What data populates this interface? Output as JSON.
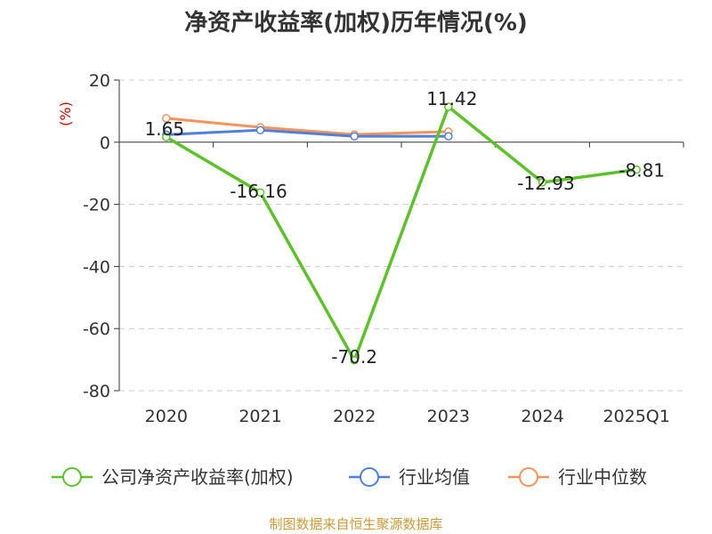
{
  "chart_data": {
    "type": "line",
    "title": "净资产收益率(加权)历年情况(%)",
    "ylabel": "(%)",
    "xlabel": "",
    "categories": [
      "2020",
      "2021",
      "2022",
      "2023",
      "2024",
      "2025Q1"
    ],
    "ylim": [
      -80,
      20
    ],
    "yticks": [
      20,
      0,
      -20,
      -40,
      -60,
      -80
    ],
    "grid": true,
    "legend_position": "bottom",
    "series": [
      {
        "name": "公司净资产收益率(加权)",
        "color": "#5cc22a",
        "values": [
          1.65,
          -16.16,
          -70.2,
          11.42,
          -12.93,
          -8.81
        ],
        "labels": [
          "1.65",
          "-16.16",
          "-70.2",
          "11.42",
          "-12.93",
          "-8.81"
        ]
      },
      {
        "name": "行业均值",
        "color": "#4f7fdc",
        "values": [
          2.4,
          3.9,
          1.9,
          1.9,
          null,
          null
        ]
      },
      {
        "name": "行业中位数",
        "color": "#f4935a",
        "values": [
          7.7,
          4.8,
          2.5,
          3.4,
          null,
          null
        ]
      }
    ]
  },
  "source": "制图数据来自恒生聚源数据库"
}
